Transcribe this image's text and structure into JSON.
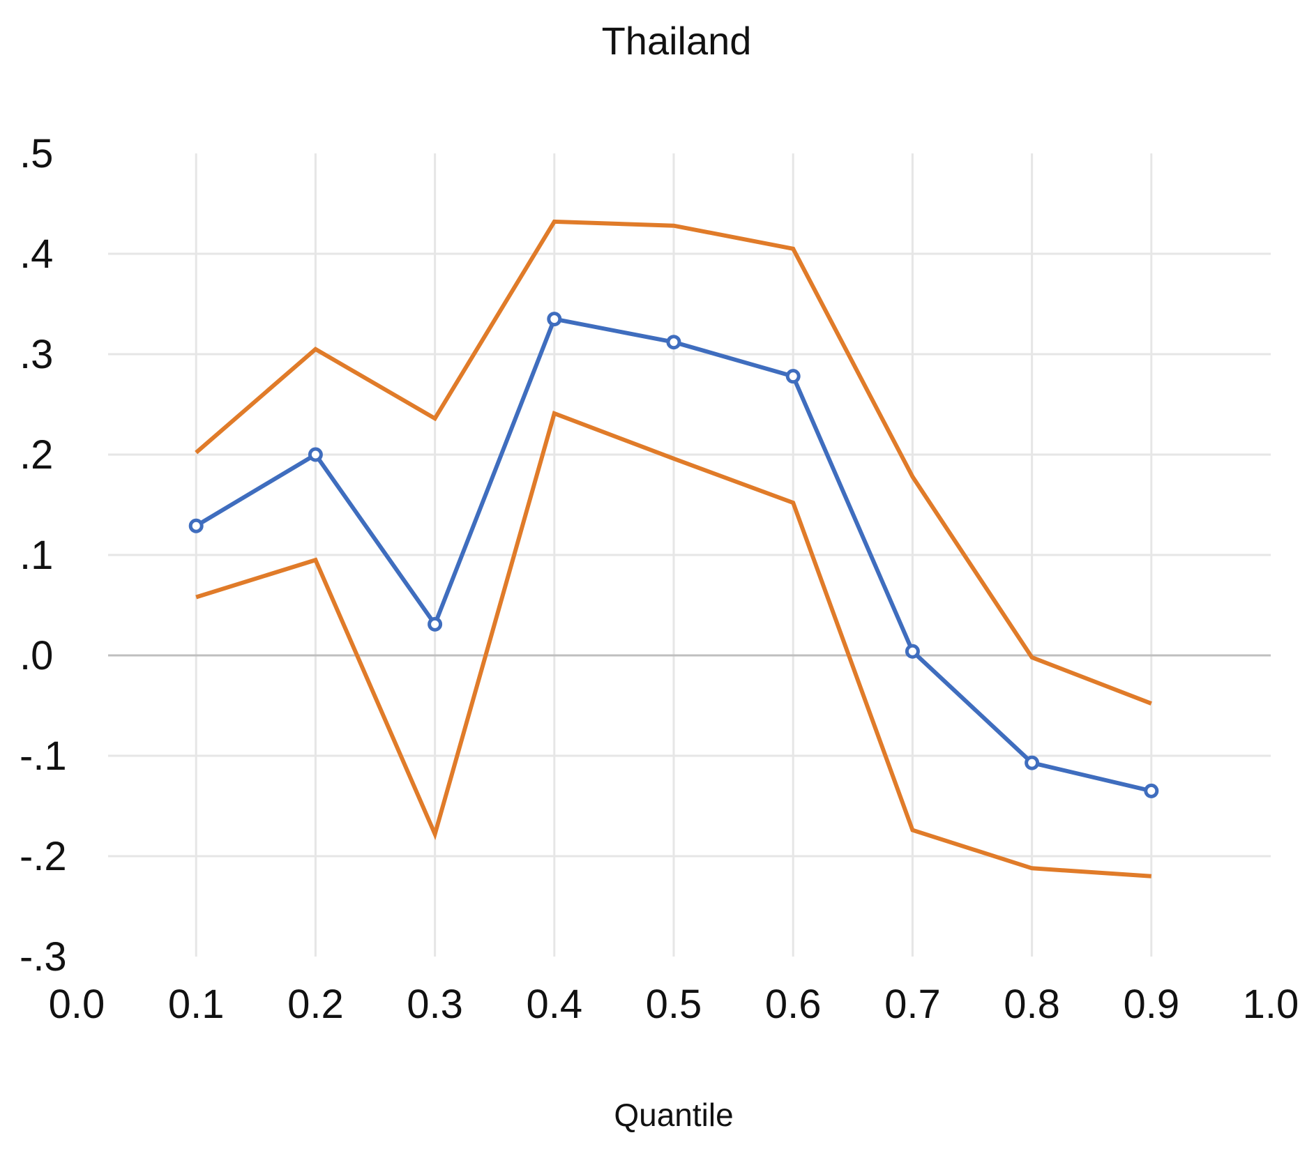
{
  "chart_data": {
    "type": "line",
    "title": "Thailand",
    "xlabel": "Quantile",
    "ylabel": "",
    "xlim": [
      0.0,
      1.0
    ],
    "ylim": [
      -0.3,
      0.5
    ],
    "grid": true,
    "x_tick_labels": [
      "0.0",
      "0.1",
      "0.2",
      "0.3",
      "0.4",
      "0.5",
      "0.6",
      "0.7",
      "0.8",
      "0.9",
      "1.0"
    ],
    "y_tick_labels": [
      ".5",
      ".4",
      ".3",
      ".2",
      ".1",
      ".0",
      "-.1",
      "-.2",
      "-.3"
    ],
    "x": [
      0.1,
      0.2,
      0.3,
      0.4,
      0.5,
      0.6,
      0.7,
      0.8,
      0.9
    ],
    "series": [
      {
        "color": "#E07B29",
        "markers": false,
        "values": [
          0.202,
          0.305,
          0.236,
          0.432,
          0.428,
          0.405,
          0.178,
          -0.002,
          -0.048
        ]
      },
      {
        "color": "#3F6DBE",
        "markers": true,
        "values": [
          0.129,
          0.2,
          0.031,
          0.335,
          0.312,
          0.278,
          0.004,
          -0.107,
          -0.135
        ]
      },
      {
        "color": "#E07B29",
        "markers": false,
        "values": [
          0.058,
          0.095,
          -0.178,
          0.241,
          0.196,
          0.152,
          -0.174,
          -0.212,
          -0.22
        ]
      }
    ]
  }
}
